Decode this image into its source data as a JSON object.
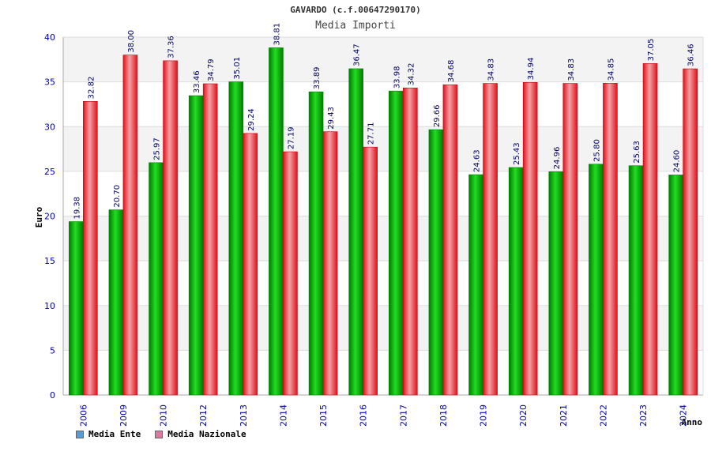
{
  "chart_data": {
    "type": "bar",
    "title": "GAVARDO (c.f.00647290170)",
    "subtitle": "Media Importi",
    "xlabel": "Anno",
    "ylabel": "Euro",
    "ylim": [
      0,
      40
    ],
    "yticks": [
      0,
      5,
      10,
      15,
      20,
      25,
      30,
      35,
      40
    ],
    "grid": true,
    "legend_position": "bottom-left",
    "categories": [
      "2006",
      "2009",
      "2010",
      "2012",
      "2013",
      "2014",
      "2015",
      "2016",
      "2017",
      "2018",
      "2019",
      "2020",
      "2021",
      "2022",
      "2023",
      "2024"
    ],
    "series": [
      {
        "name": "Media Ente",
        "color": "#00aa00",
        "legend_color": "#5b9bd5",
        "values": [
          19.38,
          20.7,
          25.97,
          33.46,
          35.01,
          38.81,
          33.89,
          36.47,
          33.98,
          29.66,
          24.63,
          25.43,
          24.96,
          25.8,
          25.63,
          24.6
        ],
        "labels": [
          "19.38",
          "20.70",
          "25.97",
          "33.46",
          "35.01",
          "38.81",
          "33.89",
          "36.47",
          "33.98",
          "29.66",
          "24.63",
          "25.43",
          "24.96",
          "25.80",
          "25.63",
          "24.60"
        ]
      },
      {
        "name": "Media Nazionale",
        "color": "#e8141e",
        "legend_color": "#d97aa0",
        "values": [
          32.82,
          38.0,
          37.36,
          34.79,
          29.24,
          27.19,
          29.43,
          27.71,
          34.32,
          34.68,
          34.83,
          34.94,
          34.83,
          34.85,
          37.05,
          36.46
        ],
        "labels": [
          "32.82",
          "38.00",
          "37.36",
          "34.79",
          "29.24",
          "27.19",
          "29.43",
          "27.71",
          "34.32",
          "34.68",
          "34.83",
          "34.94",
          "34.83",
          "34.85",
          "37.05",
          "36.46"
        ]
      }
    ]
  }
}
